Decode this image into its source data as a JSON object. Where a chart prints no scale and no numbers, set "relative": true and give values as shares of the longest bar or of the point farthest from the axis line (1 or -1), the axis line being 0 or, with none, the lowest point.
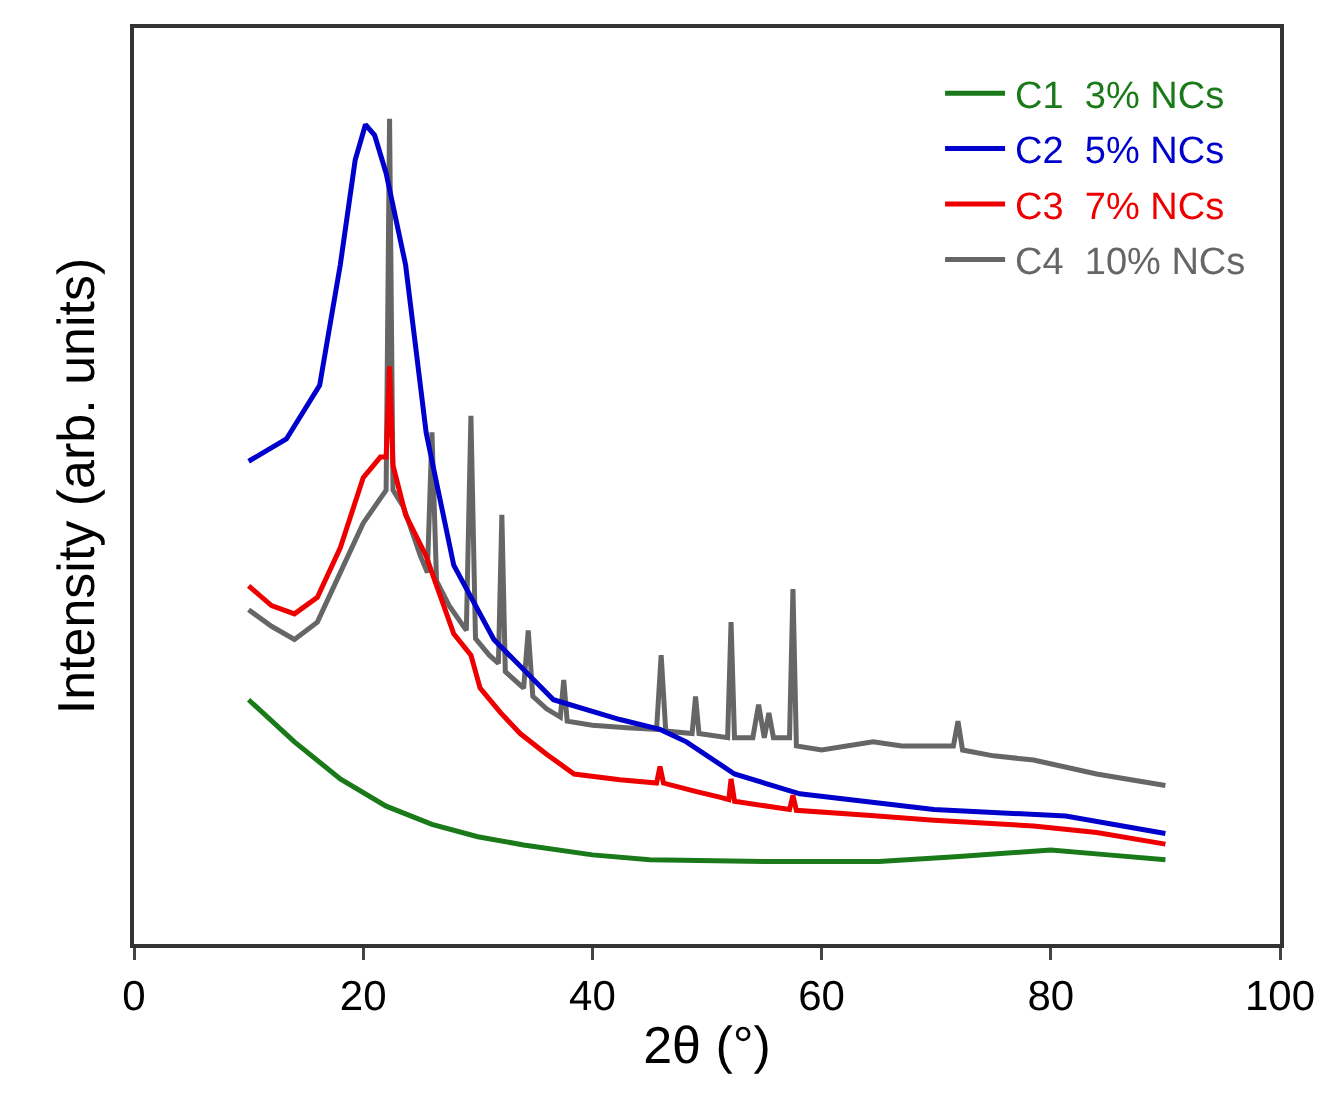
{
  "chart_data": {
    "type": "line",
    "relative": true,
    "xlabel": "2θ (°)",
    "ylabel": "Intensity (arb. units)",
    "xlim": [
      0,
      100
    ],
    "xticks": [
      0,
      20,
      40,
      60,
      80,
      100
    ],
    "legend": "top right",
    "grid": false,
    "marker": "none",
    "line_style": "solid",
    "series": [
      {
        "name": "C1  3% NCs",
        "color": "#1a7a1a",
        "x": [
          10,
          14,
          18,
          22,
          26,
          30,
          34,
          40,
          45,
          55,
          65,
          72,
          80,
          85,
          90
        ],
        "values": [
          0.296,
          0.245,
          0.2,
          0.167,
          0.145,
          0.13,
          0.12,
          0.108,
          0.102,
          0.1,
          0.1,
          0.106,
          0.114,
          0.108,
          0.102
        ]
      },
      {
        "name": "C2  5% NCs",
        "color": "#0000cc",
        "x": [
          10,
          13.3,
          16.2,
          18,
          19.3,
          20.2,
          21,
          22,
          23.7,
          25.5,
          27.9,
          31.4,
          36.6,
          42.4,
          45.9,
          48.2,
          52.4,
          58.1,
          69.8,
          81.3,
          90
        ],
        "values": [
          0.585,
          0.612,
          0.677,
          0.823,
          0.95,
          0.993,
          0.98,
          0.934,
          0.823,
          0.619,
          0.459,
          0.369,
          0.296,
          0.272,
          0.26,
          0.245,
          0.206,
          0.182,
          0.163,
          0.155,
          0.134
        ]
      },
      {
        "name": "C3  7% NCs",
        "color": "#ee0000",
        "x": [
          10,
          12,
          14,
          16,
          18,
          20,
          21.5,
          22,
          22.3,
          22.6,
          23.7,
          25.5,
          26,
          27.9,
          29.4,
          30.2,
          32,
          33.7,
          36,
          38.4,
          42.4,
          45.6,
          45.9,
          46.2,
          49,
          51.1,
          51.9,
          52.1,
          52.4,
          57.2,
          57.5,
          57.8,
          64,
          69.8,
          78.5,
          84,
          90
        ],
        "values": [
          0.434,
          0.41,
          0.4,
          0.42,
          0.48,
          0.565,
          0.59,
          0.59,
          0.7,
          0.58,
          0.52,
          0.47,
          0.45,
          0.376,
          0.35,
          0.31,
          0.28,
          0.255,
          0.23,
          0.206,
          0.199,
          0.195,
          0.215,
          0.195,
          0.185,
          0.178,
          0.175,
          0.2,
          0.173,
          0.163,
          0.18,
          0.162,
          0.156,
          0.15,
          0.143,
          0.135,
          0.121
        ]
      },
      {
        "name": "C4  10% NCs",
        "color": "#666666",
        "x": [
          10,
          12,
          14,
          16,
          18,
          20,
          21.5,
          22,
          22.3,
          22.6,
          23.5,
          25,
          25.6,
          26,
          26.4,
          27.5,
          29,
          29.4,
          29.8,
          31,
          31.8,
          32.1,
          32.4,
          34,
          34.4,
          34.8,
          36,
          37.2,
          37.5,
          37.8,
          40,
          43,
          45.6,
          46,
          46.4,
          48.7,
          49,
          49.3,
          51.8,
          52.1,
          52.4,
          54,
          54.5,
          55,
          55.4,
          55.8,
          57.2,
          57.5,
          57.8,
          60,
          64.5,
          67,
          71.5,
          71.9,
          72.3,
          75,
          78.5,
          84,
          90
        ],
        "values": [
          0.405,
          0.385,
          0.369,
          0.39,
          0.45,
          0.51,
          0.54,
          0.55,
          1.0,
          0.55,
          0.53,
          0.47,
          0.45,
          0.62,
          0.44,
          0.41,
          0.38,
          0.64,
          0.37,
          0.35,
          0.34,
          0.52,
          0.33,
          0.31,
          0.38,
          0.3,
          0.285,
          0.275,
          0.32,
          0.27,
          0.265,
          0.262,
          0.26,
          0.35,
          0.258,
          0.255,
          0.3,
          0.255,
          0.25,
          0.39,
          0.25,
          0.25,
          0.29,
          0.25,
          0.28,
          0.25,
          0.25,
          0.43,
          0.24,
          0.235,
          0.245,
          0.24,
          0.24,
          0.27,
          0.235,
          0.228,
          0.223,
          0.206,
          0.192
        ]
      }
    ]
  }
}
